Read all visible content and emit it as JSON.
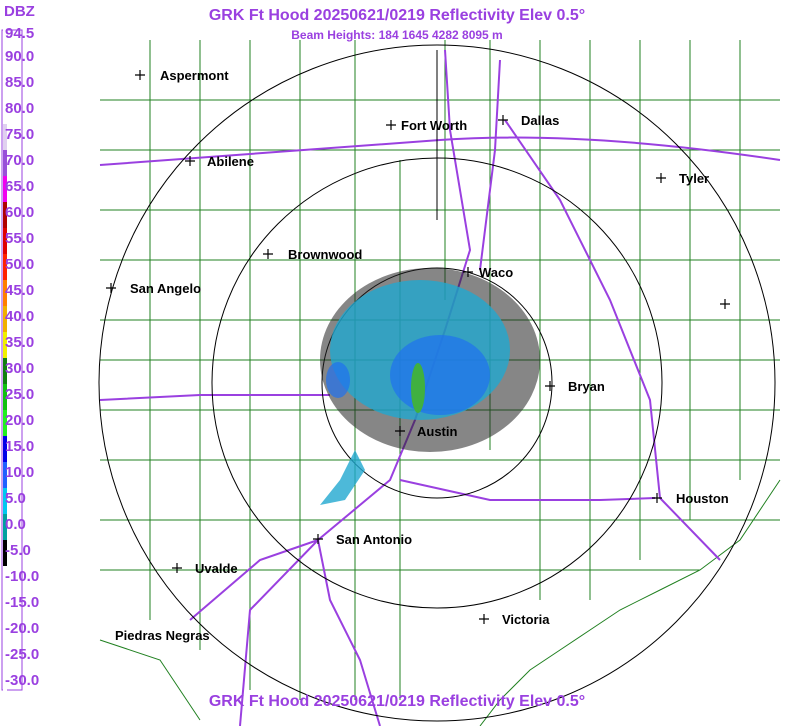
{
  "header": {
    "title": "GRK Ft Hood 20250621/0219 Reflectivity Elev 0.5°",
    "subtitle": "Beam Heights: 184 1645 4282 8095 m",
    "footer": "GRK Ft Hood 20250621/0219 Reflectivity Elev 0.5°"
  },
  "colorbar": {
    "unit": "DBZ",
    "labels": [
      "94.5",
      "90.0",
      "85.0",
      "80.0",
      "75.0",
      "70.0",
      "65.0",
      "60.0",
      "55.0",
      "50.0",
      "45.0",
      "40.0",
      "35.0",
      "30.0",
      "25.0",
      "20.0",
      "15.0",
      "10.0",
      "5.0",
      "0.0",
      "-5.0",
      "-10.0",
      "-15.0",
      "-20.0",
      "-25.0",
      "-30.0"
    ],
    "colors": [
      "#ffffff",
      "#ffffff",
      "#ffffff",
      "#ffffff",
      "#e0d0f0",
      "#9850d8",
      "#f000f0",
      "#b00000",
      "#e00000",
      "#ff2000",
      "#ff8000",
      "#f0b000",
      "#f0f000",
      "#108010",
      "#10c010",
      "#20f020",
      "#0000e8",
      "#2060ff",
      "#00c8f0",
      "#00a0a0",
      "#000000",
      "#ffffff",
      "#ffffff",
      "#ffffff",
      "#ffffff",
      "#ffffff"
    ]
  },
  "cities": [
    {
      "name": "Aspermont"
    },
    {
      "name": "Abilene"
    },
    {
      "name": "Fort Worth"
    },
    {
      "name": "Dallas"
    },
    {
      "name": "Tyler"
    },
    {
      "name": "Brownwood"
    },
    {
      "name": "San Angelo"
    },
    {
      "name": "Waco"
    },
    {
      "name": "Bryan"
    },
    {
      "name": "Austin"
    },
    {
      "name": "Houston"
    },
    {
      "name": "San Antonio"
    },
    {
      "name": "Uvalde"
    },
    {
      "name": "Victoria"
    },
    {
      "name": "Piedras Negras"
    }
  ]
}
